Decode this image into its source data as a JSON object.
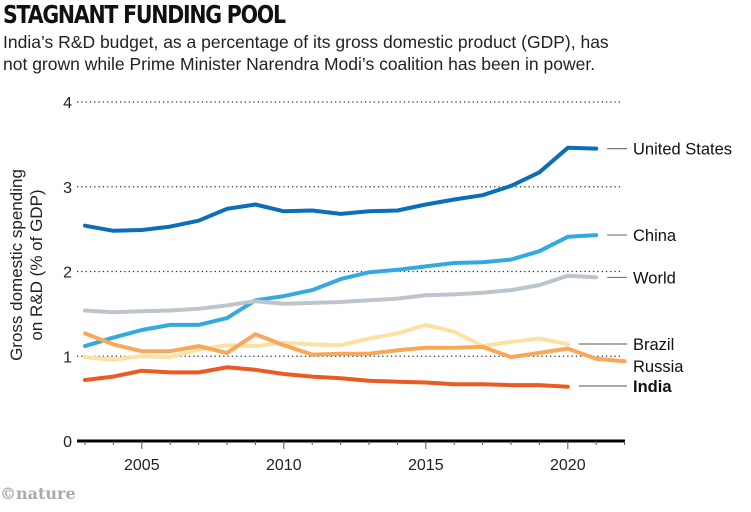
{
  "header": {
    "title": "STAGNANT FUNDING POOL",
    "subtitle_line1": "India’s R&D budget, as a percentage of its gross domestic product (GDP), has",
    "subtitle_line2": "not grown while Prime Minister Narendra Modi’s coalition has been in power."
  },
  "footer": {
    "credit": "©nature"
  },
  "chart_data": {
    "type": "line",
    "title": "STAGNANT FUNDING POOL",
    "subtitle": "India’s R&D budget, as a percentage of its gross domestic product (GDP), has not grown while Prime Minister Narendra Modi’s coalition has been in power.",
    "xlabel": "",
    "ylabel": "Gross domestic spending on R&D (% of GDP)",
    "ylabel_line1": "Gross domestic spending",
    "ylabel_line2": "on R&D (% of GDP)",
    "xlim": [
      2003,
      2022
    ],
    "ylim": [
      0,
      4
    ],
    "x_ticks": [
      2005,
      2010,
      2015,
      2020
    ],
    "x_tick_labels": [
      "2005",
      "2010",
      "2015",
      "2020"
    ],
    "y_ticks": [
      0,
      1,
      2,
      3,
      4
    ],
    "y_tick_labels": [
      "0",
      "1",
      "2",
      "3",
      "4"
    ],
    "grid": "horizontal-dotted",
    "legend": "direct-labels-right",
    "x": [
      2003,
      2004,
      2005,
      2006,
      2007,
      2008,
      2009,
      2010,
      2011,
      2012,
      2013,
      2014,
      2015,
      2016,
      2017,
      2018,
      2019,
      2020,
      2021,
      2022
    ],
    "series": [
      {
        "name": "United States",
        "color": "#0a6fb8",
        "bold": false,
        "values": [
          2.54,
          2.48,
          2.49,
          2.53,
          2.6,
          2.74,
          2.79,
          2.71,
          2.72,
          2.68,
          2.71,
          2.72,
          2.79,
          2.85,
          2.9,
          3.01,
          3.17,
          3.46,
          3.45,
          null
        ]
      },
      {
        "name": "China",
        "color": "#34a9e1",
        "bold": false,
        "values": [
          1.12,
          1.22,
          1.31,
          1.37,
          1.37,
          1.45,
          1.66,
          1.71,
          1.78,
          1.91,
          1.99,
          2.02,
          2.06,
          2.1,
          2.11,
          2.14,
          2.24,
          2.41,
          2.43,
          null
        ]
      },
      {
        "name": "World",
        "color": "#bcc4cc",
        "bold": false,
        "values": [
          1.54,
          1.52,
          1.53,
          1.54,
          1.56,
          1.6,
          1.65,
          1.62,
          1.63,
          1.64,
          1.66,
          1.68,
          1.72,
          1.73,
          1.75,
          1.78,
          1.84,
          1.95,
          1.93,
          null
        ]
      },
      {
        "name": "Brazil",
        "color": "#fde1a2",
        "bold": false,
        "values": [
          0.99,
          0.96,
          1.0,
          0.99,
          1.08,
          1.13,
          1.12,
          1.16,
          1.14,
          1.13,
          1.21,
          1.27,
          1.37,
          1.29,
          1.12,
          1.17,
          1.21,
          1.14,
          null,
          null
        ]
      },
      {
        "name": "Russia",
        "color": "#f7a85a",
        "bold": false,
        "values": [
          1.27,
          1.14,
          1.06,
          1.06,
          1.12,
          1.04,
          1.26,
          1.13,
          1.02,
          1.03,
          1.03,
          1.07,
          1.1,
          1.1,
          1.11,
          0.99,
          1.04,
          1.09,
          0.97,
          0.94
        ]
      },
      {
        "name": "India",
        "color": "#ec5a24",
        "bold": true,
        "values": [
          0.72,
          0.76,
          0.83,
          0.81,
          0.81,
          0.87,
          0.84,
          0.79,
          0.76,
          0.74,
          0.71,
          0.7,
          0.69,
          0.67,
          0.67,
          0.66,
          0.66,
          0.64,
          null,
          null
        ]
      }
    ]
  }
}
